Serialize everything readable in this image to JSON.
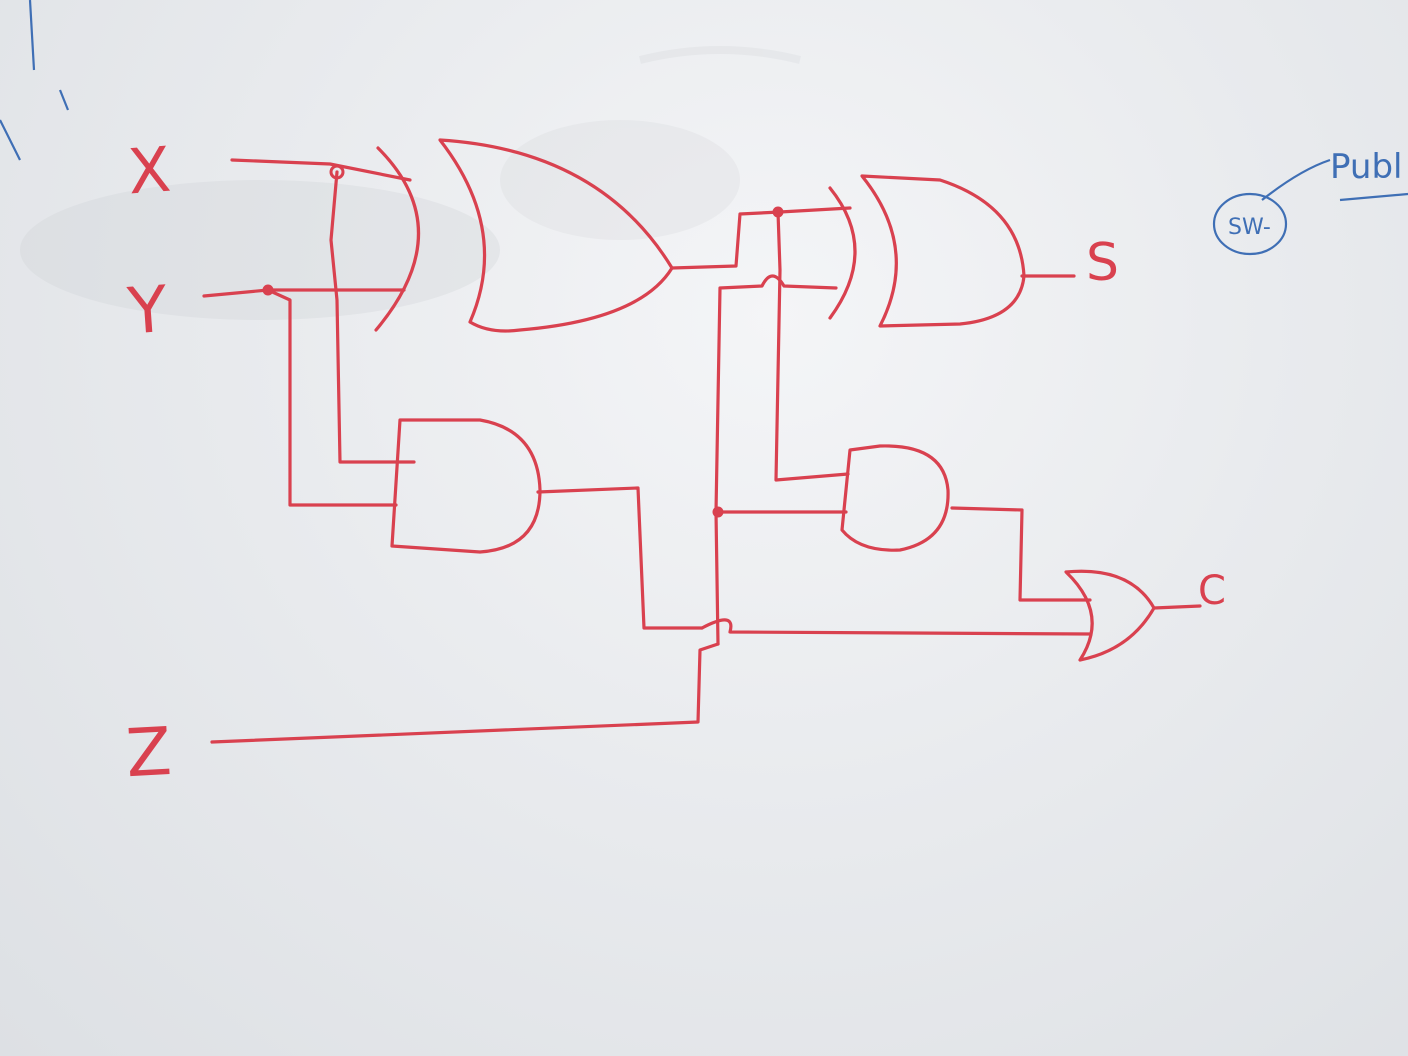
{
  "colors": {
    "marker_red": "#d9414f",
    "marker_blue": "#3f6fb5",
    "board": "#eceef1"
  },
  "diagram": {
    "inputs": [
      {
        "label": "X"
      },
      {
        "label": "Y"
      },
      {
        "label": "Z"
      }
    ],
    "outputs": [
      {
        "label": "S"
      },
      {
        "label": "C"
      }
    ],
    "gates": [
      {
        "id": "xor1",
        "type": "XOR",
        "inputs": [
          "X",
          "Y"
        ]
      },
      {
        "id": "and1",
        "type": "AND",
        "inputs": [
          "X",
          "Y"
        ]
      },
      {
        "id": "xor2",
        "type": "XOR",
        "inputs": [
          "xor1",
          "Z"
        ],
        "output": "S"
      },
      {
        "id": "and2",
        "type": "AND",
        "inputs": [
          "xor1",
          "Z"
        ]
      },
      {
        "id": "or1",
        "type": "OR",
        "inputs": [
          "and1",
          "and2"
        ],
        "output": "C"
      }
    ],
    "margin_note": {
      "circled_text": "SW-",
      "text": "Publ"
    }
  }
}
